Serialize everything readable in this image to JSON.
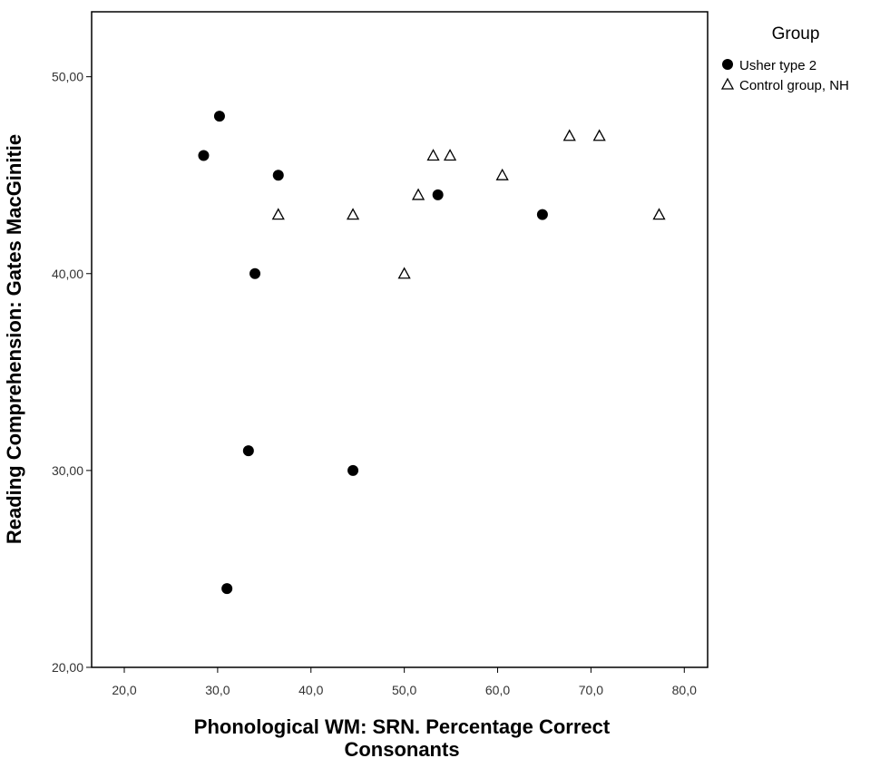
{
  "chart_data": {
    "type": "scatter",
    "xlabel": "Phonological WM: SRN. Percentage Correct Consonants",
    "ylabel": "Reading Comprehension: Gates MacGinitie",
    "xlim": [
      16.5,
      82.5
    ],
    "ylim": [
      20,
      53.3
    ],
    "x_ticks": [
      20,
      30,
      40,
      50,
      60,
      70,
      80
    ],
    "x_tick_labels": [
      "20,0",
      "30,0",
      "40,0",
      "50,0",
      "60,0",
      "70,0",
      "80,0"
    ],
    "y_ticks": [
      20,
      30,
      40,
      50
    ],
    "y_tick_labels": [
      "20,00",
      "30,00",
      "40,00",
      "50,00"
    ],
    "grid": false,
    "legend": {
      "title": "Group",
      "position": "top-right outside plot"
    },
    "series": [
      {
        "name": "Usher type 2",
        "marker": "filled-circle",
        "color": "#000000",
        "points": [
          {
            "x": 28.5,
            "y": 46
          },
          {
            "x": 30.2,
            "y": 48
          },
          {
            "x": 36.5,
            "y": 45
          },
          {
            "x": 34.0,
            "y": 40
          },
          {
            "x": 33.3,
            "y": 31
          },
          {
            "x": 31.0,
            "y": 24
          },
          {
            "x": 44.5,
            "y": 30
          },
          {
            "x": 53.6,
            "y": 44
          },
          {
            "x": 64.8,
            "y": 43
          }
        ]
      },
      {
        "name": "Control group, NH",
        "marker": "open-triangle",
        "color": "#000000",
        "points": [
          {
            "x": 36.5,
            "y": 43
          },
          {
            "x": 44.5,
            "y": 43
          },
          {
            "x": 50.0,
            "y": 40
          },
          {
            "x": 51.5,
            "y": 44
          },
          {
            "x": 53.1,
            "y": 46
          },
          {
            "x": 54.9,
            "y": 46
          },
          {
            "x": 60.5,
            "y": 45
          },
          {
            "x": 67.7,
            "y": 47
          },
          {
            "x": 70.9,
            "y": 47
          },
          {
            "x": 77.3,
            "y": 43
          }
        ]
      }
    ]
  }
}
